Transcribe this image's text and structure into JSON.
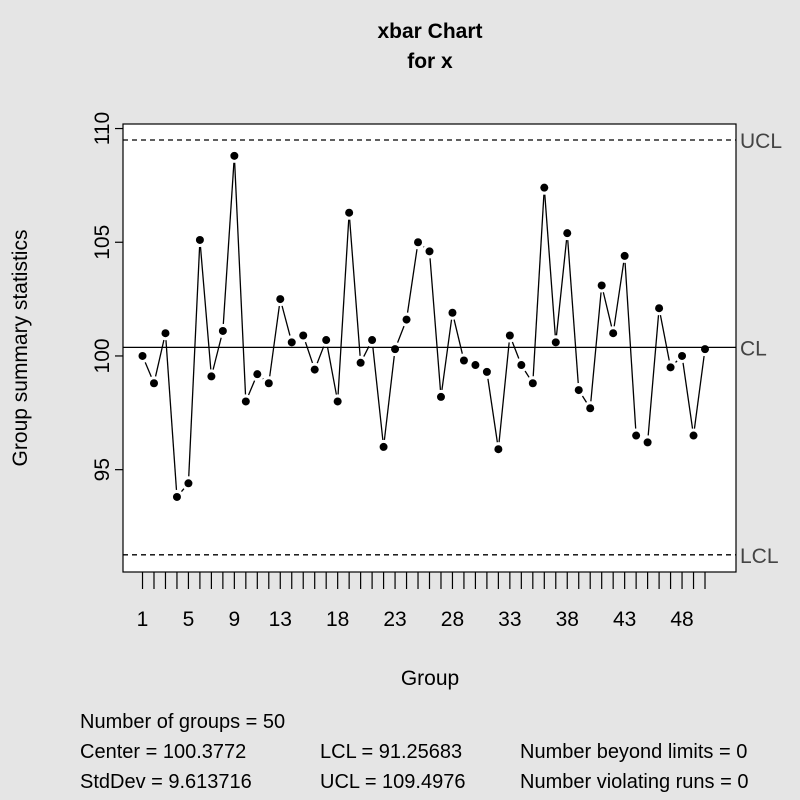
{
  "chart_data": {
    "type": "line",
    "title": "xbar Chart",
    "subtitle": "for x",
    "xlabel": "Group",
    "ylabel": "Group summary statistics",
    "x_tick_labels": [
      "1",
      "5",
      "9",
      "13",
      "18",
      "23",
      "28",
      "33",
      "38",
      "43",
      "48"
    ],
    "x_tick_values": [
      1,
      5,
      9,
      13,
      18,
      23,
      28,
      33,
      38,
      43,
      48
    ],
    "y_ticks": [
      95,
      100,
      105,
      110
    ],
    "ylim": [
      90.5,
      110.2
    ],
    "xlim": [
      -0.7,
      52.7
    ],
    "control_lines": {
      "ucl": {
        "label": "UCL",
        "value": 109.4976
      },
      "cl": {
        "label": "CL",
        "value": 100.3772
      },
      "lcl": {
        "label": "LCL",
        "value": 91.25683
      }
    },
    "series": [
      {
        "x": [
          1,
          2,
          3,
          4,
          5,
          6,
          7,
          8,
          9,
          10,
          11,
          12,
          13,
          14,
          15,
          16,
          17,
          18,
          19,
          20,
          21,
          22,
          23,
          24,
          25,
          26,
          27,
          28,
          29,
          30,
          31,
          32,
          33,
          34,
          35,
          36,
          37,
          38,
          39,
          40,
          41,
          42,
          43,
          44,
          45,
          46,
          47,
          48,
          49,
          50
        ],
        "values": [
          100.0,
          98.8,
          101.0,
          93.8,
          94.4,
          105.1,
          99.1,
          101.1,
          108.8,
          98.0,
          99.2,
          98.8,
          102.5,
          100.6,
          100.9,
          99.4,
          100.7,
          98.0,
          106.3,
          99.7,
          100.7,
          96.0,
          100.3,
          101.6,
          105.0,
          104.6,
          98.2,
          101.9,
          99.8,
          99.6,
          99.3,
          95.9,
          100.9,
          99.6,
          98.8,
          107.4,
          100.6,
          105.4,
          98.5,
          97.7,
          103.1,
          101.0,
          104.4,
          96.5,
          96.2,
          102.1,
          99.5,
          100.0,
          96.5,
          100.3
        ]
      }
    ],
    "summary": {
      "groups": "Number of groups = 50",
      "center": "Center = 100.3772",
      "stddev": "StdDev = 9.613716",
      "lcl": "LCL = 91.25683",
      "ucl": "UCL = 109.4976",
      "beyond": "Number beyond limits = 0",
      "runs": "Number violating runs = 0"
    },
    "colors": {
      "background": "#e5e5e5",
      "plot_area": "#ffffff",
      "line": "#000000",
      "control_label": "#444444"
    }
  }
}
